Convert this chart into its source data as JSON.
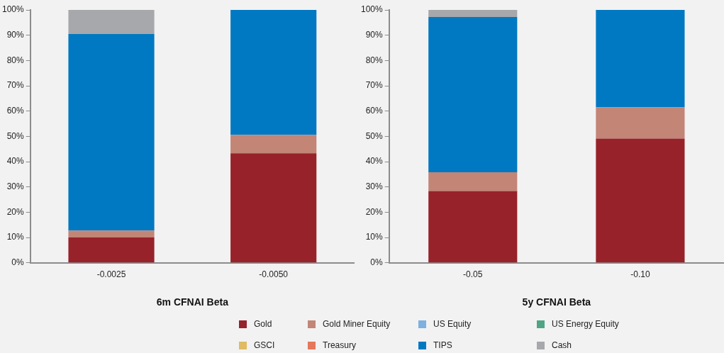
{
  "chart_data": [
    {
      "type": "bar",
      "stacked": true,
      "xlabel": "6m CFNAI Beta",
      "categories": [
        "-0.0025",
        "-0.0050"
      ],
      "ylim": [
        0,
        100
      ],
      "yticks": [
        {
          "value": 0,
          "label": "0%"
        },
        {
          "value": 10,
          "label": "10%"
        },
        {
          "value": 20,
          "label": "20%"
        },
        {
          "value": 30,
          "label": "30%"
        },
        {
          "value": 40,
          "label": "40%"
        },
        {
          "value": 50,
          "label": "50%"
        },
        {
          "value": 60,
          "label": "60%"
        },
        {
          "value": 70,
          "label": "70%"
        },
        {
          "value": 80,
          "label": "80%"
        },
        {
          "value": 90,
          "label": "90%"
        },
        {
          "value": 100,
          "label": "100%"
        }
      ],
      "grid": false,
      "legend": false,
      "series": [
        {
          "color": "#98222a",
          "values": [
            10,
            43.3
          ]
        },
        {
          "color": "#c28576",
          "values": [
            2.8,
            7.3
          ]
        },
        {
          "color": "#7eb0e0",
          "values": [
            0,
            0
          ]
        },
        {
          "color": "#4ea584",
          "values": [
            0,
            0
          ]
        },
        {
          "color": "#e0bb63",
          "values": [
            0,
            0
          ]
        },
        {
          "color": "#e5775a",
          "values": [
            0,
            0
          ]
        },
        {
          "color": "#0079c2",
          "values": [
            77.7,
            49.4
          ]
        },
        {
          "color": "#a7a8ab",
          "values": [
            9.5,
            0
          ]
        }
      ]
    },
    {
      "type": "bar",
      "stacked": true,
      "xlabel": "5y CFNAI Beta",
      "categories": [
        "-0.05",
        "-0.10"
      ],
      "ylim": [
        0,
        100
      ],
      "yticks": [
        {
          "value": 0,
          "label": "0%"
        },
        {
          "value": 10,
          "label": "10%"
        },
        {
          "value": 20,
          "label": "20%"
        },
        {
          "value": 30,
          "label": "30%"
        },
        {
          "value": 40,
          "label": "40%"
        },
        {
          "value": 50,
          "label": "50%"
        },
        {
          "value": 60,
          "label": "60%"
        },
        {
          "value": 70,
          "label": "70%"
        },
        {
          "value": 80,
          "label": "80%"
        },
        {
          "value": 90,
          "label": "90%"
        },
        {
          "value": 100,
          "label": "100%"
        }
      ],
      "grid": false,
      "legend": "bottom",
      "series": [
        {
          "name": "Gold",
          "color": "#98222a",
          "values": [
            28.4,
            49.1
          ]
        },
        {
          "name": "Gold Miner Equity",
          "color": "#c28576",
          "values": [
            7.4,
            12.4
          ]
        },
        {
          "name": "US Equity",
          "color": "#7eb0e0",
          "values": [
            0,
            0
          ]
        },
        {
          "name": "US Energy Equity",
          "color": "#4ea584",
          "values": [
            0,
            0
          ]
        },
        {
          "name": "GSCI",
          "color": "#e0bb63",
          "values": [
            0,
            0
          ]
        },
        {
          "name": "Treasury",
          "color": "#e5775a",
          "values": [
            0,
            0
          ]
        },
        {
          "name": "TIPS",
          "color": "#0079c2",
          "values": [
            61.4,
            38.5
          ]
        },
        {
          "name": "Cash",
          "color": "#a7a8ab",
          "values": [
            2.8,
            0
          ]
        }
      ]
    }
  ]
}
